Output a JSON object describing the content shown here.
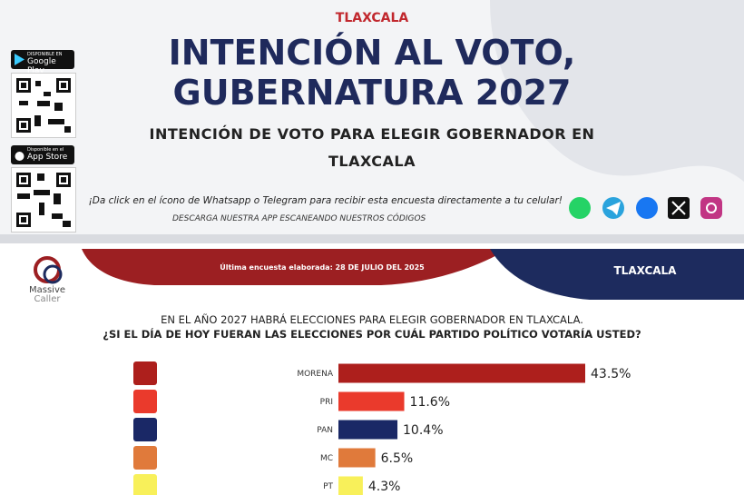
{
  "header": {
    "region": "TLAXCALA",
    "title_lines": [
      "INTENCIÓN AL VOTO,",
      "GUBERNATURA 2027"
    ],
    "subtitle": "INTENCIÓN DE VOTO PARA ELEGIR GOBERNADOR EN TLAXCALA",
    "google_play": {
      "small": "DISPONIBLE EN",
      "store": "Google Play"
    },
    "app_store": {
      "small": "Disponible en el",
      "store": "App Store"
    },
    "cta": "¡Da click en el ícono de Whatsapp o Telegram para recibir esta encuesta directamente a tu celular!",
    "download": "DESCARGA NUESTRA APP ESCANEANDO NUESTROS CÓDIGOS"
  },
  "survey": {
    "date_note": "Última encuesta elaborada: 28 DE JULIO DEL 2025",
    "region": "TLAXCALA",
    "logo": [
      "Massive",
      "Caller"
    ],
    "intro": "EN EL AÑO 2027 HABRÁ ELECCIONES PARA ELEGIR GOBERNADOR EN TLAXCALA.",
    "question": "¿SI EL DÍA DE HOY FUERAN LAS ELECCIONES POR CUÁL PARTIDO POLÍTICO VOTARÍA USTED?"
  },
  "chart_data": {
    "type": "bar",
    "orientation": "horizontal",
    "categories": [
      "MORENA",
      "PRI",
      "PAN",
      "MC",
      "PT"
    ],
    "values": [
      43.5,
      11.6,
      10.4,
      6.5,
      4.3
    ],
    "value_labels": [
      "43.5%",
      "11.6%",
      "10.4%",
      "6.5%",
      "4.3%"
    ],
    "colors": [
      "#ad1f1c",
      "#ea3a2c",
      "#1a2866",
      "#e07a3b",
      "#f8f05a"
    ]
  }
}
